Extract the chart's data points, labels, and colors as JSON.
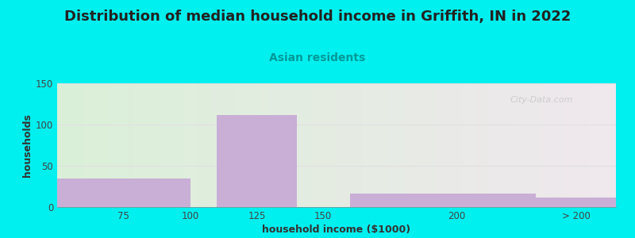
{
  "title": "Distribution of median household income in Griffith, IN in 2022",
  "subtitle": "Asian residents",
  "xlabel": "household income ($1000)",
  "ylabel": "households",
  "bar_color": "#c9aed6",
  "ylim": [
    0,
    150
  ],
  "yticks": [
    0,
    50,
    100,
    150
  ],
  "background_outer": "#00efef",
  "background_plot_left": "#daf0d8",
  "background_plot_right": "#f0e8ee",
  "grid_color": "#e0e0e0",
  "title_fontsize": 13,
  "subtitle_fontsize": 10,
  "subtitle_color": "#009999",
  "axis_label_fontsize": 9,
  "tick_label_fontsize": 8.5,
  "watermark_text": "City-Data.com",
  "watermark_color": "#c8c8c8",
  "title_color": "#222222"
}
